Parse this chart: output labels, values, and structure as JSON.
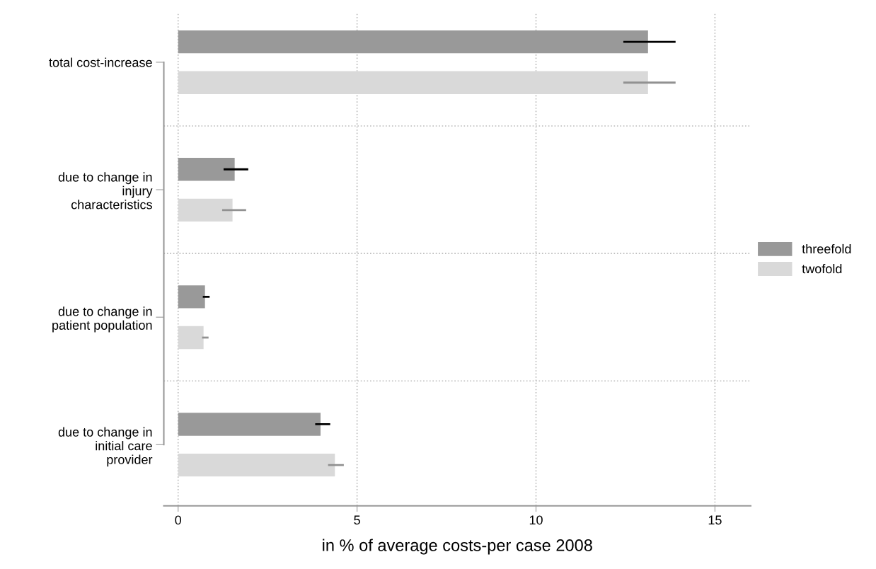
{
  "chart_data": {
    "type": "bar",
    "orientation": "horizontal",
    "xlabel": "in % of average costs-per case 2008",
    "categories": [
      "total cost-increase",
      "due to change in\ninjury\ncharacteristics",
      "due to change in\npatient population",
      "due to change in\ninitial care\nprovider"
    ],
    "series": [
      {
        "name": "threefold",
        "color": "#999999",
        "values": [
          13.13,
          1.58,
          0.75,
          3.98
        ],
        "errors": [
          [
            12.44,
            13.9
          ],
          [
            1.27,
            1.96
          ],
          [
            0.69,
            0.88
          ],
          [
            3.83,
            4.25
          ]
        ]
      },
      {
        "name": "twofold",
        "color": "#d9d9d9",
        "values": [
          13.13,
          1.52,
          0.71,
          4.38
        ],
        "errors": [
          [
            12.44,
            13.9
          ],
          [
            1.23,
            1.9
          ],
          [
            0.67,
            0.85
          ],
          [
            4.19,
            4.63
          ]
        ]
      }
    ],
    "xlim": [
      -0.4,
      16
    ],
    "xticks": [
      0,
      5,
      10,
      15
    ],
    "grid": true,
    "legend": "right"
  }
}
